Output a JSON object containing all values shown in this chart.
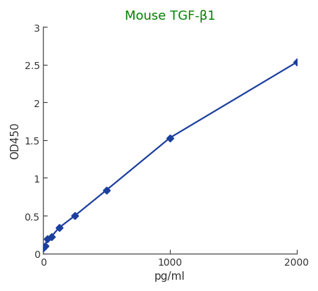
{
  "x": [
    0,
    15.625,
    31.25,
    62.5,
    125,
    250,
    500,
    1000,
    2000
  ],
  "y": [
    0.07,
    0.1,
    0.19,
    0.22,
    0.34,
    0.5,
    0.84,
    1.53,
    2.53
  ],
  "line_color": "#1c3f9e",
  "marker": "D",
  "marker_color": "#1c3f9e",
  "marker_size": 5,
  "title": "Mouse TGF-β1",
  "title_color": "#008000",
  "xlabel": "pg/ml",
  "ylabel": "OD450",
  "xlim": [
    0,
    2000
  ],
  "ylim": [
    0,
    3
  ],
  "xticks": [
    0,
    1000,
    2000
  ],
  "yticks": [
    0,
    0.5,
    1.0,
    1.5,
    2.0,
    2.5,
    3.0
  ],
  "background_color": "#ffffff",
  "spine_color": "#555555",
  "tick_color": "#333333",
  "font_size_title": 13,
  "font_size_axis": 11,
  "font_size_tick": 10,
  "line_width": 1.6
}
